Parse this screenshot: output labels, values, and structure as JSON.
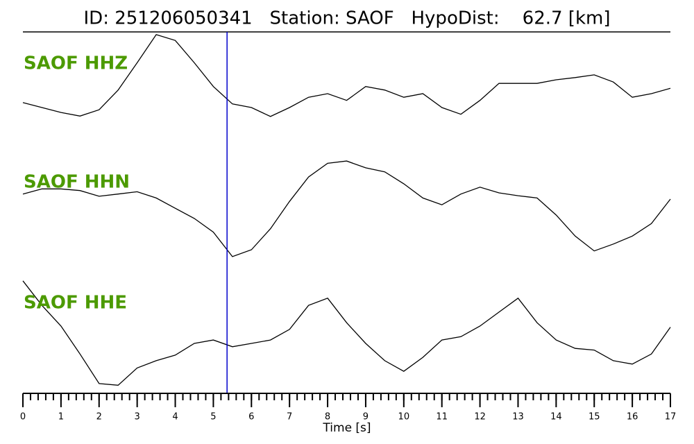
{
  "chart_data": {
    "type": "line",
    "title": "ID: 251206050341   Station: SAOF   HypoDist:    62.7 [km]",
    "xlabel": "Time [s]",
    "x": [
      0,
      0.5,
      1,
      1.5,
      2,
      2.5,
      3,
      3.5,
      4,
      4.5,
      5,
      5.5,
      6,
      6.5,
      7,
      7.5,
      8,
      8.5,
      9,
      9.5,
      10,
      10.5,
      11,
      11.5,
      12,
      12.5,
      13,
      13.5,
      14,
      14.5,
      15,
      15.5,
      16,
      16.5,
      17
    ],
    "xlim": [
      0,
      17
    ],
    "xticks": [
      0,
      1,
      2,
      3,
      4,
      5,
      6,
      7,
      8,
      9,
      10,
      11,
      12,
      13,
      14,
      15,
      16,
      17
    ],
    "minor_xtick_step": 0.2,
    "ylim": [
      -100,
      100
    ],
    "label_color": "#4c9a00",
    "vlines": [
      {
        "x": 5.36,
        "color": "#0000cc"
      }
    ],
    "series": [
      {
        "name": "SAOF HHZ",
        "color": "#000000",
        "values": [
          -58,
          -69,
          -80,
          -88,
          -74,
          -30,
          31,
          94,
          81,
          31,
          -22,
          -61,
          -69,
          -89,
          -69,
          -46,
          -38,
          -53,
          -22,
          -30,
          -46,
          -38,
          -69,
          -84,
          -53,
          -15,
          -15,
          -15,
          -7,
          -2,
          4,
          -12,
          -46,
          -38,
          -26
        ]
      },
      {
        "name": "SAOF HHN",
        "color": "#000000",
        "values": [
          37,
          46,
          46,
          43,
          33,
          37,
          41,
          30,
          12,
          -6,
          -30,
          -73,
          -61,
          -24,
          24,
          67,
          91,
          95,
          83,
          76,
          55,
          30,
          18,
          37,
          49,
          39,
          34,
          30,
          0,
          -37,
          -63,
          -51,
          -37,
          -15,
          28
        ]
      },
      {
        "name": "SAOF HHE",
        "color": "#000000",
        "values": [
          99,
          55,
          18,
          -32,
          -85,
          -88,
          -57,
          -44,
          -34,
          -13,
          -7,
          -19,
          -13,
          -7,
          12,
          55,
          68,
          24,
          -13,
          -44,
          -63,
          -38,
          -7,
          -1,
          18,
          43,
          68,
          24,
          -7,
          -22,
          -25,
          -44,
          -50,
          -32,
          16
        ]
      }
    ]
  }
}
